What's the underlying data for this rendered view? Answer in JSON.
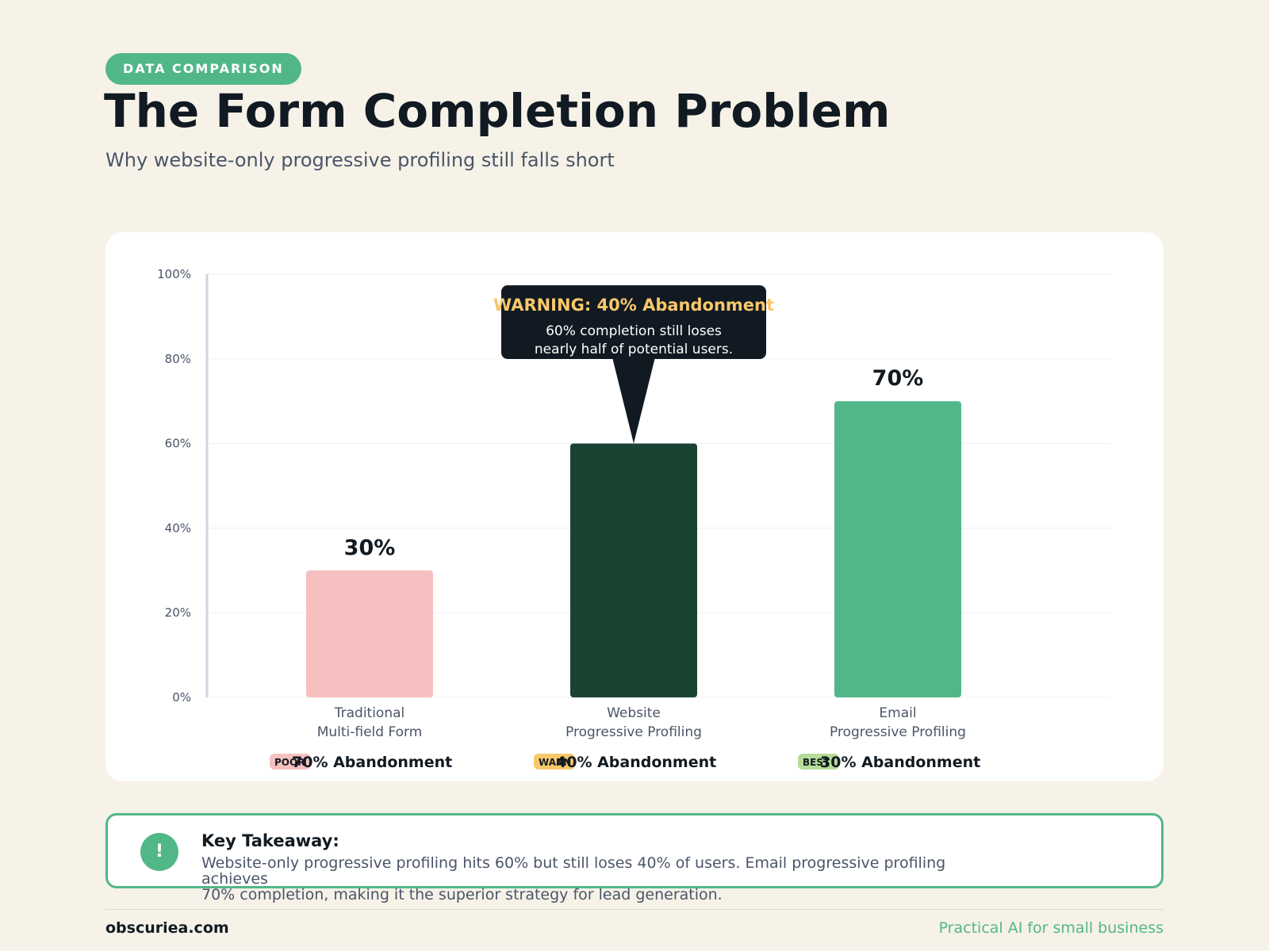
{
  "header": {
    "badge": "DATA COMPARISON",
    "title": "The Form Completion Problem",
    "subtitle": "Why website-only progressive profiling still falls short"
  },
  "chart_data": {
    "type": "bar",
    "ylim": [
      0,
      100
    ],
    "y_ticks": [
      "0%",
      "20%",
      "40%",
      "60%",
      "80%",
      "100%"
    ],
    "y_tick_values": [
      0,
      20,
      40,
      60,
      80,
      100
    ],
    "categories": [
      [
        "Traditional",
        "Multi-field Form"
      ],
      [
        "Website",
        "Progressive Profiling"
      ],
      [
        "Email",
        "Progressive Profiling"
      ]
    ],
    "values": [
      30,
      60,
      70
    ],
    "value_labels": [
      "30%",
      "",
      "70%"
    ],
    "bar_colors": [
      "#f6c0c0",
      "#1b4332",
      "#52b788"
    ],
    "tags": [
      {
        "label": "POOR",
        "color": "#f6c0c0"
      },
      {
        "label": "WARN",
        "color": "#f9c76a"
      },
      {
        "label": "BEST",
        "color": "#b5dc98"
      }
    ],
    "abandonment_labels": [
      "70% Abandonment",
      "40% Abandonment",
      "30% Abandonment"
    ],
    "callout": {
      "title": "WARNING: 40% Abandonment",
      "lines": [
        "60% completion still loses",
        "nearly half of potential users."
      ],
      "target_index": 1
    },
    "grid": true
  },
  "takeaway": {
    "icon": "exclamation-icon",
    "icon_glyph": "!",
    "heading": "Key Takeaway:",
    "lines": [
      "Website-only progressive profiling hits 60% but still loses 40% of users. Email progressive profiling achieves",
      "70% completion, making it the superior strategy for lead generation."
    ]
  },
  "footer": {
    "site": "obscuriea.com",
    "tagline": "Practical AI for small business"
  },
  "colors": {
    "background": "#f6f2e8",
    "accent": "#52b788",
    "dark_green": "#1b4332",
    "poor": "#f6c0c0",
    "warn": "#f9c76a",
    "best": "#b5dc98",
    "callout_bg": "#111a22",
    "callout_title": "#f9c76a"
  }
}
